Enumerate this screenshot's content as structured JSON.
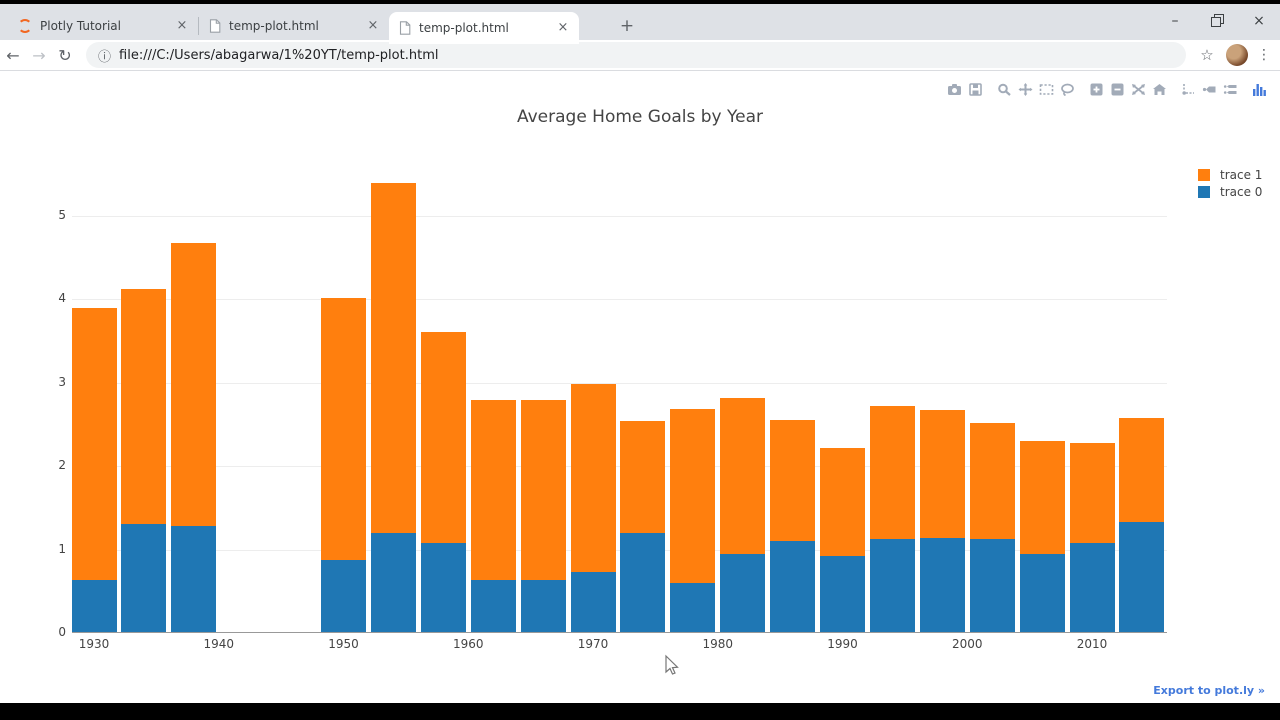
{
  "browser": {
    "tabs": [
      {
        "title": "Plotly Tutorial",
        "icon": "plotly-favicon",
        "active": false
      },
      {
        "title": "temp-plot.html",
        "icon": "document",
        "active": false
      },
      {
        "title": "temp-plot.html",
        "icon": "document",
        "active": true
      }
    ],
    "close_glyph": "×",
    "new_tab_glyph": "+",
    "window_controls": {
      "minimize": "–",
      "maximize": "restore",
      "close": "×"
    },
    "nav": {
      "back": "←",
      "forward": "→",
      "refresh": "↻"
    },
    "address": {
      "info_icon": "ⓘ",
      "url": "file:///C:/Users/abagarwa/1%20YT/temp-plot.html"
    },
    "star_icon": "☆",
    "menu_icon": "⋮"
  },
  "modebar": {
    "groups": [
      [
        "camera",
        "save"
      ],
      [
        "zoom",
        "pan",
        "box-select",
        "lasso"
      ],
      [
        "zoom-in",
        "zoom-out",
        "autoscale",
        "reset-home"
      ],
      [
        "toggle-spikelines",
        "hover-closest",
        "hover-compare"
      ],
      [
        "plotly-logo"
      ]
    ],
    "icon_color": "#a2abb8",
    "logo_color": "#447adb"
  },
  "chart_data": {
    "type": "bar",
    "stacked": true,
    "title": "Average Home Goals by Year",
    "categories": [
      1930,
      1934,
      1938,
      1950,
      1954,
      1958,
      1962,
      1966,
      1970,
      1974,
      1978,
      1982,
      1986,
      1990,
      1994,
      1998,
      2002,
      2006,
      2010,
      2014
    ],
    "series": [
      {
        "name": "trace 0",
        "color": "#1f77b4",
        "values": [
          0.62,
          1.3,
          1.27,
          0.86,
          1.19,
          1.07,
          0.62,
          0.62,
          0.72,
          1.19,
          0.59,
          0.94,
          1.09,
          0.91,
          1.11,
          1.13,
          1.11,
          0.93,
          1.07,
          1.32
        ]
      },
      {
        "name": "trace 1",
        "color": "#ff7f0e",
        "values": [
          3.27,
          2.81,
          3.39,
          3.14,
          4.19,
          2.53,
          2.16,
          2.16,
          2.25,
          1.34,
          2.08,
          1.87,
          1.45,
          1.3,
          1.6,
          1.53,
          1.4,
          1.36,
          1.2,
          1.25
        ]
      }
    ],
    "legend_order": [
      "trace 1",
      "trace 0"
    ],
    "legend_position": "top-right",
    "grid": true,
    "xlabel": "",
    "ylabel": "",
    "x_tick_labels": [
      "1930",
      "1940",
      "1950",
      "1960",
      "1970",
      "1980",
      "1990",
      "2000",
      "2010"
    ],
    "x_tick_values": [
      1930,
      1940,
      1950,
      1960,
      1970,
      1980,
      1990,
      2000,
      2010
    ],
    "y_tick_labels": [
      "0",
      "1",
      "2",
      "3",
      "4",
      "5"
    ],
    "y_tick_values": [
      0,
      1,
      2,
      3,
      4,
      5
    ],
    "xlim": [
      1928.2,
      2017.8
    ],
    "ylim": [
      0,
      5
    ]
  },
  "page": {
    "export_link": "Export to plot.ly »"
  }
}
